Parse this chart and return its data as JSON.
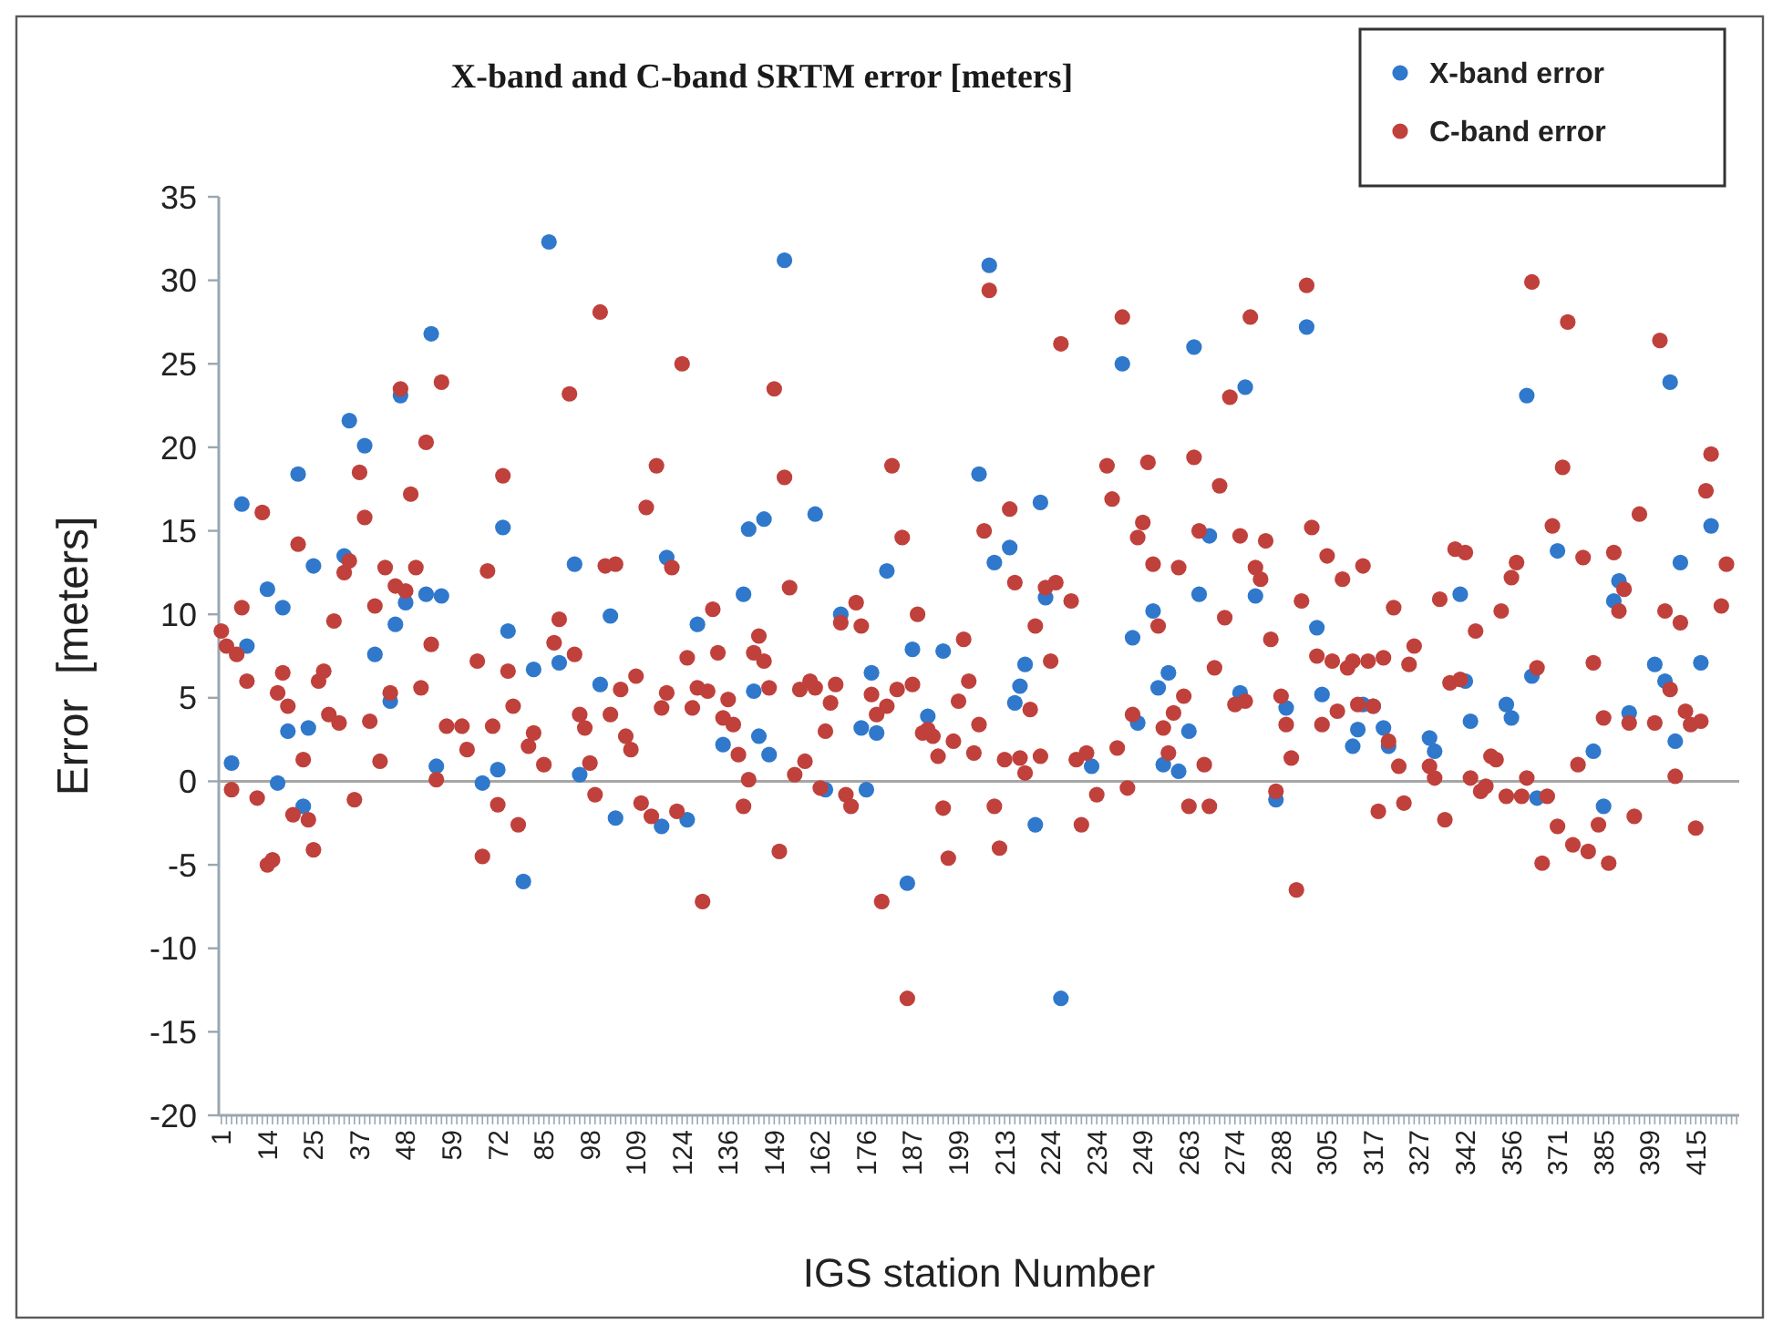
{
  "chart_data": {
    "type": "scatter",
    "title": "X-band and C-band SRTM error [meters]",
    "xlabel": "IGS station Number",
    "ylabel": "Error  [meters]",
    "categories": [
      "1",
      null,
      null,
      null,
      null,
      null,
      null,
      null,
      null,
      "14",
      null,
      null,
      null,
      null,
      null,
      null,
      null,
      null,
      "25",
      null,
      null,
      null,
      null,
      null,
      null,
      null,
      null,
      "37",
      null,
      null,
      null,
      null,
      null,
      null,
      null,
      null,
      "48",
      null,
      null,
      null,
      null,
      null,
      null,
      null,
      null,
      "59",
      null,
      null,
      null,
      null,
      null,
      null,
      null,
      null,
      "72",
      null,
      null,
      null,
      null,
      null,
      null,
      null,
      null,
      "85",
      null,
      null,
      null,
      null,
      null,
      null,
      null,
      null,
      "98",
      null,
      null,
      null,
      null,
      null,
      null,
      null,
      null,
      "109",
      null,
      null,
      null,
      null,
      null,
      null,
      null,
      null,
      "124",
      null,
      null,
      null,
      null,
      null,
      null,
      null,
      null,
      "136",
      null,
      null,
      null,
      null,
      null,
      null,
      null,
      null,
      "149",
      null,
      null,
      null,
      null,
      null,
      null,
      null,
      null,
      "162",
      null,
      null,
      null,
      null,
      null,
      null,
      null,
      null,
      "176",
      null,
      null,
      null,
      null,
      null,
      null,
      null,
      null,
      "187",
      null,
      null,
      null,
      null,
      null,
      null,
      null,
      null,
      "199",
      null,
      null,
      null,
      null,
      null,
      null,
      null,
      null,
      "213",
      null,
      null,
      null,
      null,
      null,
      null,
      null,
      null,
      "224",
      null,
      null,
      null,
      null,
      null,
      null,
      null,
      null,
      "234",
      null,
      null,
      null,
      null,
      null,
      null,
      null,
      null,
      "249",
      null,
      null,
      null,
      null,
      null,
      null,
      null,
      null,
      "263",
      null,
      null,
      null,
      null,
      null,
      null,
      null,
      null,
      "274",
      null,
      null,
      null,
      null,
      null,
      null,
      null,
      null,
      "288",
      null,
      null,
      null,
      null,
      null,
      null,
      null,
      null,
      "305",
      null,
      null,
      null,
      null,
      null,
      null,
      null,
      null,
      "317",
      null,
      null,
      null,
      null,
      null,
      null,
      null,
      null,
      "327",
      null,
      null,
      null,
      null,
      null,
      null,
      null,
      null,
      "342",
      null,
      null,
      null,
      null,
      null,
      null,
      null,
      null,
      "356",
      null,
      null,
      null,
      null,
      null,
      null,
      null,
      null,
      "371",
      null,
      null,
      null,
      null,
      null,
      null,
      null,
      null,
      "385",
      null,
      null,
      null,
      null,
      null,
      null,
      null,
      null,
      "399",
      null,
      null,
      null,
      null,
      null,
      null,
      null,
      null,
      "415",
      null,
      null,
      null,
      null,
      null,
      null,
      null,
      null
    ],
    "series": [
      {
        "name": "X-band error",
        "color": "#2f78cc",
        "values": [
          null,
          null,
          1.1,
          null,
          16.6,
          8.1,
          null,
          null,
          null,
          11.5,
          null,
          -0.1,
          10.4,
          3.0,
          null,
          18.4,
          -1.5,
          3.2,
          12.9,
          null,
          null,
          null,
          null,
          null,
          13.5,
          21.6,
          null,
          null,
          20.1,
          null,
          7.6,
          null,
          null,
          4.8,
          9.4,
          23.1,
          10.7,
          null,
          null,
          null,
          11.2,
          26.8,
          0.9,
          11.1,
          null,
          null,
          null,
          null,
          null,
          null,
          null,
          -0.1,
          null,
          null,
          0.7,
          15.2,
          9.0,
          null,
          null,
          -6.0,
          null,
          6.7,
          null,
          null,
          32.3,
          null,
          7.1,
          null,
          null,
          13.0,
          0.4,
          null,
          null,
          null,
          5.8,
          null,
          9.9,
          -2.2,
          null,
          null,
          null,
          null,
          null,
          null,
          null,
          null,
          -2.7,
          13.4,
          null,
          null,
          null,
          -2.3,
          null,
          9.4,
          null,
          null,
          null,
          null,
          2.2,
          null,
          null,
          null,
          11.2,
          15.1,
          5.4,
          2.7,
          15.7,
          1.6,
          null,
          null,
          31.2,
          null,
          null,
          null,
          null,
          null,
          16.0,
          null,
          -0.5,
          null,
          null,
          10.0,
          null,
          null,
          null,
          3.2,
          -0.5,
          6.5,
          2.9,
          null,
          12.6,
          null,
          null,
          null,
          -6.1,
          7.9,
          null,
          null,
          3.9,
          null,
          null,
          7.8,
          null,
          null,
          null,
          null,
          null,
          null,
          18.4,
          null,
          30.9,
          13.1,
          null,
          null,
          14.0,
          4.7,
          5.7,
          7.0,
          null,
          -2.6,
          16.7,
          11.0,
          null,
          null,
          -13.0,
          null,
          null,
          null,
          null,
          null,
          0.9,
          null,
          null,
          null,
          null,
          null,
          25.0,
          null,
          8.6,
          3.5,
          null,
          null,
          10.2,
          5.6,
          1.0,
          6.5,
          null,
          0.6,
          null,
          3.0,
          26.0,
          11.2,
          null,
          14.7,
          null,
          null,
          null,
          null,
          null,
          5.3,
          23.6,
          null,
          11.1,
          null,
          null,
          null,
          -1.1,
          null,
          4.4,
          null,
          null,
          null,
          27.2,
          null,
          9.2,
          5.2,
          null,
          null,
          null,
          null,
          null,
          2.1,
          3.1,
          4.6,
          null,
          4.5,
          null,
          3.2,
          2.1,
          null,
          null,
          null,
          null,
          null,
          null,
          null,
          2.6,
          1.8,
          null,
          null,
          null,
          null,
          11.2,
          6.0,
          3.6,
          null,
          null,
          null,
          null,
          null,
          null,
          4.6,
          3.8,
          null,
          null,
          23.1,
          6.3,
          -1.0,
          null,
          null,
          null,
          13.8,
          null,
          null,
          null,
          null,
          null,
          null,
          1.8,
          null,
          -1.5,
          null,
          10.8,
          12.0,
          null,
          4.1,
          null,
          null,
          null,
          null,
          7.0,
          null,
          6.0,
          23.9,
          2.4,
          13.1,
          null,
          null,
          null,
          7.1,
          null,
          15.3,
          null,
          null,
          null,
          null,
          null
        ]
      },
      {
        "name": "C-band error",
        "color": "#c0403b",
        "values": [
          9.0,
          8.1,
          -0.5,
          7.6,
          10.4,
          6.0,
          null,
          -1.0,
          16.1,
          -5.0,
          -4.7,
          5.3,
          6.5,
          4.5,
          -2.0,
          14.2,
          1.3,
          -2.3,
          -4.1,
          6.0,
          6.6,
          4.0,
          9.6,
          3.5,
          12.5,
          13.2,
          -1.1,
          18.5,
          15.8,
          3.6,
          10.5,
          1.2,
          12.8,
          5.3,
          11.7,
          23.5,
          11.4,
          17.2,
          12.8,
          5.6,
          20.3,
          8.2,
          0.1,
          23.9,
          3.3,
          null,
          null,
          3.3,
          1.9,
          null,
          7.2,
          -4.5,
          12.6,
          3.3,
          -1.4,
          18.3,
          6.6,
          4.5,
          -2.6,
          null,
          2.1,
          2.9,
          null,
          1.0,
          null,
          8.3,
          9.7,
          null,
          23.2,
          7.6,
          4.0,
          3.2,
          1.1,
          -0.8,
          28.1,
          12.9,
          4.0,
          13.0,
          5.5,
          2.7,
          1.9,
          6.3,
          -1.3,
          16.4,
          -2.1,
          18.9,
          4.4,
          5.3,
          12.8,
          -1.8,
          25.0,
          7.4,
          4.4,
          5.6,
          -7.2,
          5.4,
          10.3,
          7.7,
          3.8,
          4.9,
          3.4,
          1.6,
          -1.5,
          0.1,
          7.7,
          8.7,
          7.2,
          5.6,
          23.5,
          -4.2,
          18.2,
          11.6,
          0.4,
          5.5,
          1.2,
          6.0,
          5.6,
          -0.4,
          3.0,
          4.7,
          5.8,
          9.5,
          -0.8,
          -1.5,
          10.7,
          9.3,
          null,
          5.2,
          4.0,
          -7.2,
          4.5,
          18.9,
          5.5,
          14.6,
          -13.0,
          5.8,
          10.0,
          2.9,
          3.1,
          2.7,
          1.5,
          -1.6,
          -4.6,
          2.4,
          4.8,
          8.5,
          6.0,
          1.7,
          3.4,
          15.0,
          29.4,
          -1.5,
          -4.0,
          1.3,
          16.3,
          11.9,
          1.4,
          0.5,
          4.3,
          9.3,
          1.5,
          11.6,
          7.2,
          11.9,
          26.2,
          null,
          10.8,
          1.3,
          -2.6,
          1.7,
          null,
          -0.8,
          null,
          18.9,
          16.9,
          2.0,
          27.8,
          -0.4,
          4.0,
          14.6,
          15.5,
          19.1,
          13.0,
          9.3,
          3.2,
          1.7,
          4.1,
          12.8,
          5.1,
          -1.5,
          19.4,
          15.0,
          1.0,
          -1.5,
          6.8,
          17.7,
          9.8,
          23.0,
          4.6,
          14.7,
          4.8,
          27.8,
          12.8,
          12.1,
          14.4,
          8.5,
          -0.6,
          5.1,
          3.4,
          1.4,
          -6.5,
          10.8,
          29.7,
          15.2,
          7.5,
          3.4,
          13.5,
          7.2,
          4.2,
          12.1,
          6.8,
          7.2,
          4.6,
          12.9,
          7.2,
          4.5,
          -1.8,
          7.4,
          2.4,
          10.4,
          0.9,
          -1.3,
          7.0,
          8.1,
          null,
          null,
          0.9,
          0.2,
          10.9,
          -2.3,
          5.9,
          13.9,
          6.1,
          13.7,
          0.2,
          9.0,
          -0.6,
          -0.3,
          1.5,
          1.3,
          10.2,
          -0.9,
          12.2,
          13.1,
          -0.9,
          0.2,
          29.9,
          6.8,
          -4.9,
          -0.9,
          15.3,
          -2.7,
          18.8,
          27.5,
          -3.8,
          1.0,
          13.4,
          -4.2,
          7.1,
          -2.6,
          3.8,
          -4.9,
          13.7,
          10.2,
          11.5,
          3.5,
          -2.1,
          16.0,
          null,
          null,
          3.5,
          26.4,
          10.2,
          5.5,
          0.3,
          9.5,
          4.2,
          3.4,
          -2.8,
          3.6,
          17.4,
          19.6,
          null,
          10.5,
          13.0,
          null,
          null
        ]
      }
    ],
    "ylim": [
      -20,
      35
    ],
    "yticks": [
      -20,
      -15,
      -10,
      -5,
      0,
      5,
      10,
      15,
      20,
      25,
      30,
      35
    ],
    "ref_lines": [
      {
        "axis": "y",
        "value": 0,
        "color": "#a6a6a6"
      }
    ],
    "legend": "top right",
    "marker": "circle"
  }
}
